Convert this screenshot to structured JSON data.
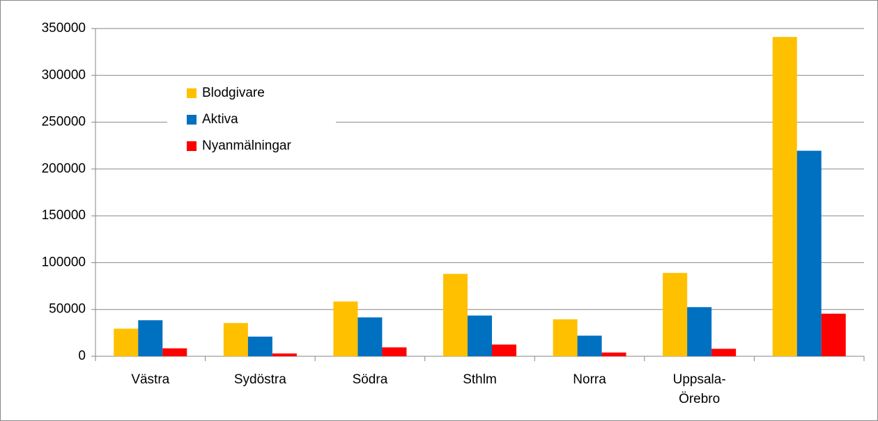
{
  "chart_data": {
    "type": "bar",
    "categories": [
      "Västra",
      "Sydöstra",
      "Södra",
      "Sthlm",
      "Norra",
      "Uppsala-Örebro",
      null
    ],
    "series": [
      {
        "name": "Blodgivare",
        "color": "#FFC000",
        "values": [
          29500,
          35500,
          58500,
          88000,
          39500,
          89000,
          341000
        ]
      },
      {
        "name": "Aktiva",
        "color": "#0070C0",
        "values": [
          38500,
          21000,
          41500,
          43500,
          22000,
          52500,
          219500
        ]
      },
      {
        "name": "Nyanmälningar",
        "color": "#FF0000",
        "values": [
          8500,
          3000,
          9500,
          12500,
          4000,
          8000,
          45500
        ]
      }
    ],
    "ylim": [
      0,
      350000
    ],
    "yticks": [
      0,
      50000,
      100000,
      150000,
      200000,
      250000,
      300000,
      350000
    ],
    "grid": true,
    "legend": "upper-left"
  }
}
